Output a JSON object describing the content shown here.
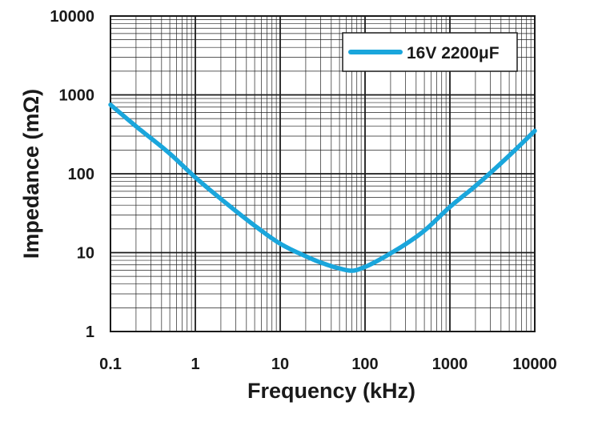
{
  "chart_data": {
    "type": "line",
    "xlabel": "Frequency (kHz)",
    "ylabel": "Impedance (mΩ)",
    "x_scale": "log",
    "y_scale": "log",
    "xlim": [
      0.1,
      10000
    ],
    "ylim": [
      1,
      10000
    ],
    "x_ticks": [
      "0.1",
      "1",
      "10",
      "100",
      "1000",
      "10000"
    ],
    "y_ticks": [
      "1",
      "10",
      "100",
      "1000",
      "10000"
    ],
    "grid": true,
    "legend_position": "top-right",
    "series": [
      {
        "name": "16V 2200μF",
        "color": "#1aa6dc",
        "x": [
          0.1,
          0.2,
          0.5,
          1,
          2,
          5,
          10,
          20,
          30,
          50,
          70,
          100,
          150,
          200,
          300,
          500,
          1000,
          2000,
          5000,
          10000
        ],
        "y": [
          750,
          400,
          180,
          90,
          48,
          22,
          13,
          9,
          7.5,
          6.3,
          5.9,
          6.6,
          8.2,
          9.8,
          12.8,
          19,
          38,
          70,
          170,
          350
        ]
      }
    ]
  }
}
